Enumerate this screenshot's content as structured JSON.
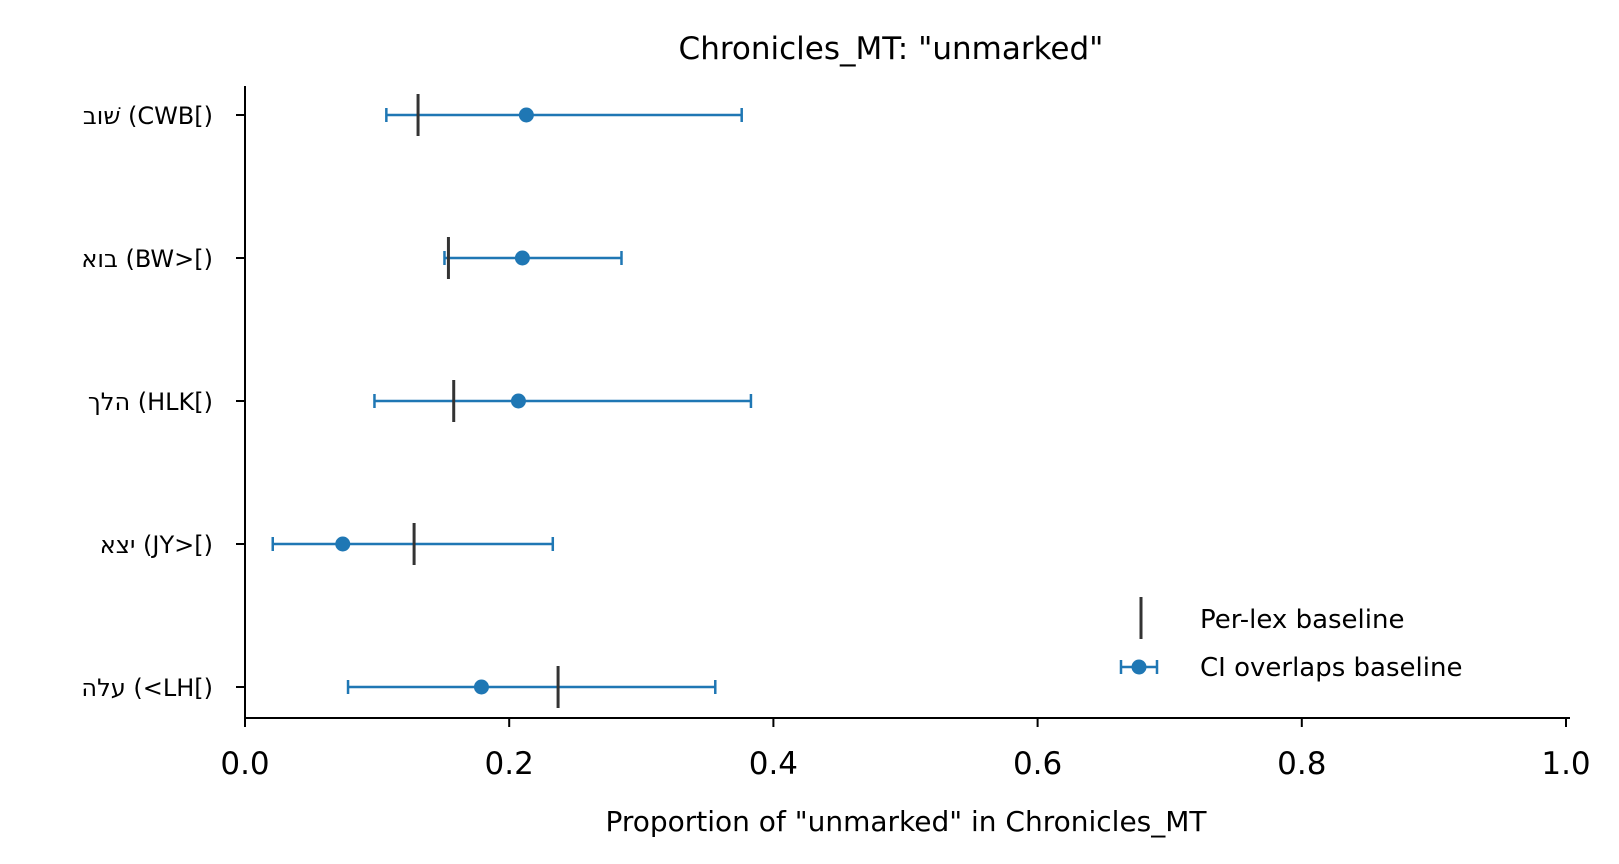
{
  "chart_data": {
    "type": "scatter",
    "title": "Chronicles_MT: \"unmarked\"",
    "xlabel": "Proportion of \"unmarked\" in Chronicles_MT",
    "ylabel": "",
    "xlim": [
      0.0,
      1.0
    ],
    "xticks": [
      0.0,
      0.2,
      0.4,
      0.6,
      0.8,
      1.0
    ],
    "xtick_labels": [
      "0.0",
      "0.2",
      "0.4",
      "0.6",
      "0.8",
      "1.0"
    ],
    "grid": false,
    "legend_position": "lower-right",
    "categories": [
      "שׁוב (CWB[)",
      "בוא (BW>[)",
      "הלך (HLK[)",
      "יצא (JY>[)",
      "עלה (<LH[)"
    ],
    "series": [
      {
        "name": "Per-lex baseline",
        "marker": "vertical-line",
        "color": "#333333",
        "values": [
          0.131,
          0.154,
          0.158,
          0.128,
          0.237
        ]
      },
      {
        "name": "CI overlaps baseline",
        "marker": "point-with-errorbar",
        "color": "#1f77b4",
        "values": [
          0.213,
          0.21,
          0.207,
          0.074,
          0.179
        ],
        "ci_low": [
          0.107,
          0.151,
          0.098,
          0.021,
          0.078
        ],
        "ci_high": [
          0.376,
          0.285,
          0.383,
          0.233,
          0.356
        ]
      }
    ]
  }
}
